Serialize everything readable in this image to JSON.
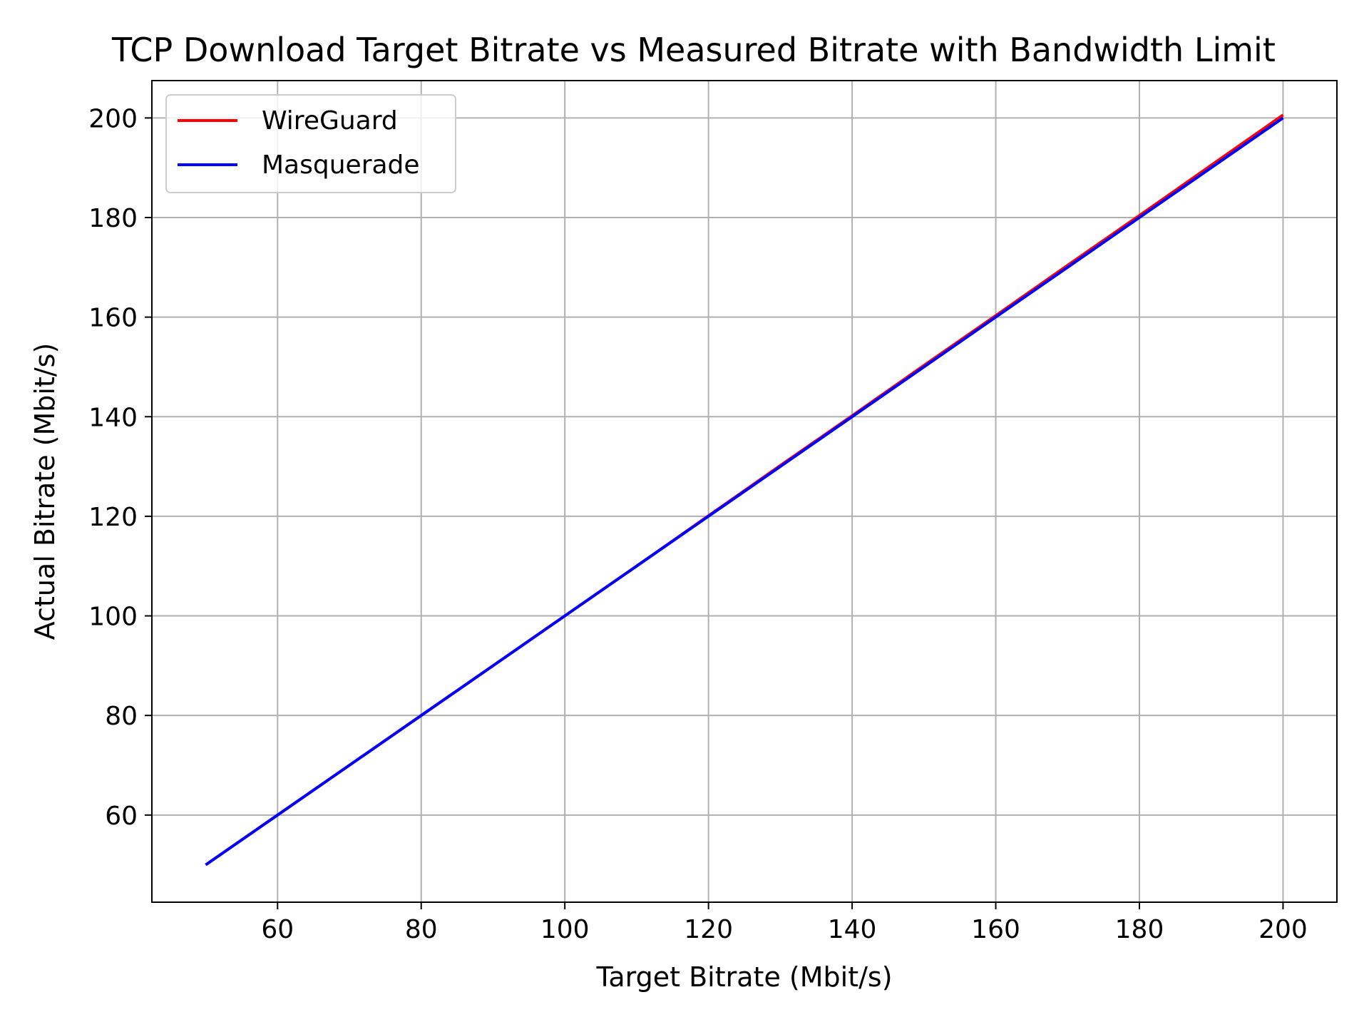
{
  "chart_data": {
    "type": "line",
    "title": "TCP Download Target Bitrate vs Measured Bitrate with Bandwidth Limit",
    "xlabel": "Target Bitrate (Mbit/s)",
    "ylabel": "Actual Bitrate (Mbit/s)",
    "xlim": [
      42.5,
      207.5
    ],
    "ylim": [
      42.5,
      207.5
    ],
    "xticks": [
      60,
      80,
      100,
      120,
      140,
      160,
      180,
      200
    ],
    "yticks": [
      60,
      80,
      100,
      120,
      140,
      160,
      180,
      200
    ],
    "grid": true,
    "legend_position": "top-left",
    "series": [
      {
        "name": "WireGuard",
        "color": "#ff0000",
        "x": [
          50,
          60,
          70,
          80,
          90,
          100,
          110,
          120,
          130,
          140,
          150,
          160,
          170,
          180,
          190,
          200
        ],
        "y": [
          50.0,
          60.0,
          70.0,
          80.0,
          90.0,
          100.0,
          110.0,
          120.1,
          130.2,
          140.2,
          150.3,
          160.3,
          170.4,
          180.4,
          190.5,
          200.6
        ]
      },
      {
        "name": "Masquerade",
        "color": "#0000ff",
        "x": [
          50,
          60,
          70,
          80,
          90,
          100,
          110,
          120,
          130,
          140,
          150,
          160,
          170,
          180,
          190,
          200
        ],
        "y": [
          50.0,
          60.0,
          70.0,
          80.0,
          90.0,
          100.0,
          110.0,
          120.0,
          130.0,
          140.0,
          150.0,
          160.0,
          170.0,
          180.0,
          190.0,
          200.0
        ]
      }
    ]
  }
}
